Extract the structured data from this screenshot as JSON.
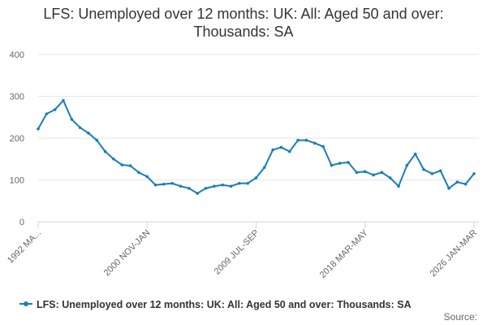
{
  "chart_data": {
    "type": "line",
    "title": "LFS: Unemployed over 12 months: UK: All: Aged 50 and over: Thousands: SA",
    "categories": [
      "1992 MA...",
      null,
      null,
      null,
      null,
      null,
      null,
      null,
      null,
      null,
      null,
      null,
      null,
      "2000 NOV-JAN",
      null,
      null,
      null,
      null,
      null,
      null,
      null,
      null,
      null,
      null,
      null,
      null,
      "2009 JUL-SEP",
      null,
      null,
      null,
      null,
      null,
      null,
      null,
      null,
      null,
      null,
      null,
      null,
      "2018 MAR-MAY",
      null,
      null,
      null,
      null,
      null,
      null,
      null,
      null,
      null,
      null,
      null,
      null,
      "2026 JAN-MAR"
    ],
    "series": [
      {
        "name": "LFS: Unemployed over 12 months: UK: All: Aged 50 and over: Thousands: SA",
        "color": "#1a7db6",
        "values": [
          222,
          258,
          268,
          290,
          245,
          225,
          212,
          195,
          168,
          150,
          136,
          134,
          118,
          108,
          88,
          90,
          92,
          85,
          80,
          68,
          80,
          85,
          88,
          85,
          92,
          92,
          105,
          130,
          172,
          178,
          168,
          195,
          195,
          188,
          180,
          135,
          140,
          142,
          118,
          120,
          112,
          118,
          105,
          85,
          135,
          162,
          125,
          115,
          122,
          80,
          95,
          90,
          115
        ]
      }
    ],
    "ylim": [
      0,
      400
    ],
    "yticks": [
      0,
      100,
      200,
      300,
      400
    ],
    "grid": true,
    "legend": "bottom",
    "source": "Source:"
  }
}
